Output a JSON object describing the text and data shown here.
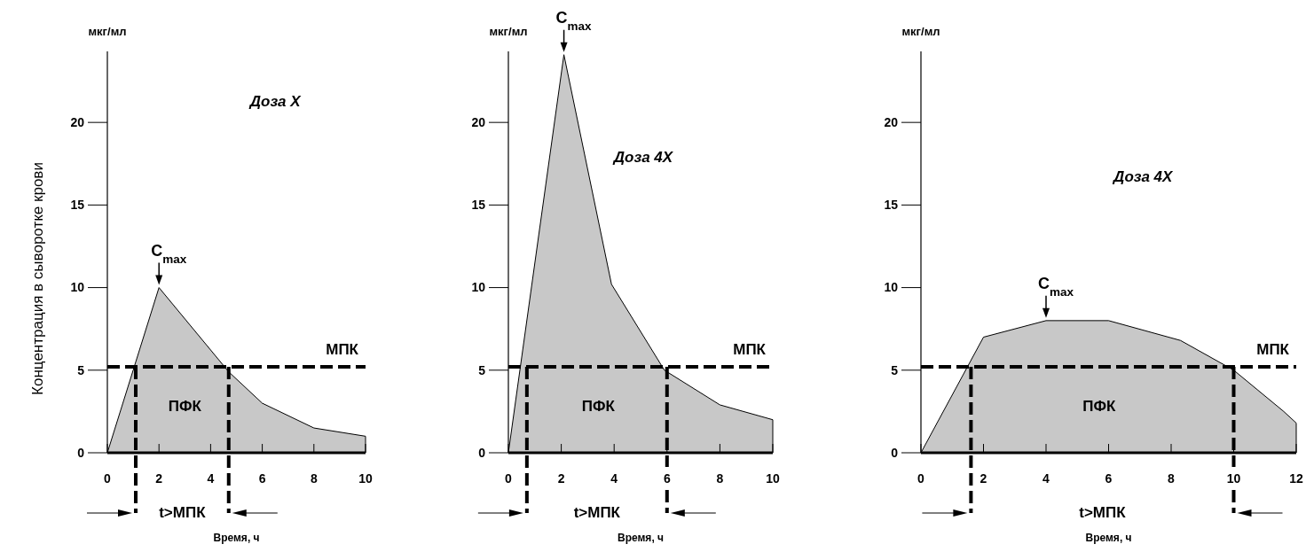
{
  "chart_data": [
    {
      "type": "area",
      "ylabel": "мкг/мл",
      "xlabel": "Время, ч",
      "x": [
        0,
        2,
        4.7,
        6,
        8,
        10
      ],
      "xlim": [
        0,
        10
      ],
      "xticks": [
        0,
        2,
        4,
        6,
        8,
        10
      ],
      "ylim": [
        0,
        24.3
      ],
      "yticks": [
        0,
        5,
        10,
        15,
        20
      ],
      "series": [
        {
          "color": "#c8c8c8",
          "values": [
            0,
            10,
            4.9,
            3,
            1.5,
            1
          ]
        }
      ],
      "ref_lines": [
        {
          "axis": "y",
          "value": 5.2,
          "label": "МПК",
          "line_style": "dashed"
        },
        {
          "axis": "x",
          "value": 1.1,
          "line_style": "dashed"
        },
        {
          "axis": "x",
          "value": 4.7,
          "line_style": "dashed"
        }
      ],
      "annotations": [
        "Доза X",
        "ПФК",
        "t>МПК",
        "Концентрация в сыворотке крови",
        {
          "text": "C$_{max}$",
          "x": 2,
          "y": 10
        }
      ]
    },
    {
      "type": "area",
      "ylabel": "мкг/мл",
      "xlabel": "Время, ч",
      "x": [
        0,
        2.1,
        3.9,
        5.9,
        8,
        10
      ],
      "xlim": [
        0,
        10
      ],
      "xticks": [
        0,
        2,
        4,
        6,
        8,
        10
      ],
      "ylim": [
        0,
        24.3
      ],
      "yticks": [
        0,
        5,
        10,
        15,
        20
      ],
      "series": [
        {
          "color": "#c8c8c8",
          "values": [
            0,
            24.1,
            10.2,
            5,
            2.9,
            2
          ]
        }
      ],
      "ref_lines": [
        {
          "axis": "y",
          "value": 5.2,
          "label": "МПК",
          "line_style": "dashed"
        },
        {
          "axis": "x",
          "value": 0.7,
          "line_style": "dashed"
        },
        {
          "axis": "x",
          "value": 6,
          "line_style": "dashed"
        }
      ],
      "annotations": [
        "Доза 4X",
        "ПФК",
        "t>МПК",
        {
          "text": "C$_{max}$",
          "x": 2.1,
          "y": 24.1
        }
      ]
    },
    {
      "type": "area",
      "ylabel": "мкг/мл",
      "xlabel": "Время, ч",
      "x": [
        0,
        2,
        4,
        6,
        8.3,
        10,
        11.6,
        12
      ],
      "xlim": [
        0,
        12
      ],
      "xticks": [
        0,
        2,
        4,
        6,
        8,
        10,
        12
      ],
      "ylim": [
        0,
        24.3
      ],
      "yticks": [
        0,
        5,
        10,
        15,
        20
      ],
      "series": [
        {
          "color": "#c8c8c8",
          "values": [
            0,
            7,
            8,
            8,
            6.8,
            5,
            2.5,
            1.8
          ]
        }
      ],
      "ref_lines": [
        {
          "axis": "y",
          "value": 5.2,
          "label": "МПК",
          "line_style": "dashed"
        },
        {
          "axis": "x",
          "value": 1.6,
          "line_style": "dashed"
        },
        {
          "axis": "x",
          "value": 10,
          "line_style": "dashed"
        }
      ],
      "annotations": [
        "Доза 4X",
        "ПФК",
        "t>МПК",
        {
          "text": "C$_{max}$",
          "x": 4,
          "y": 8
        }
      ]
    }
  ]
}
